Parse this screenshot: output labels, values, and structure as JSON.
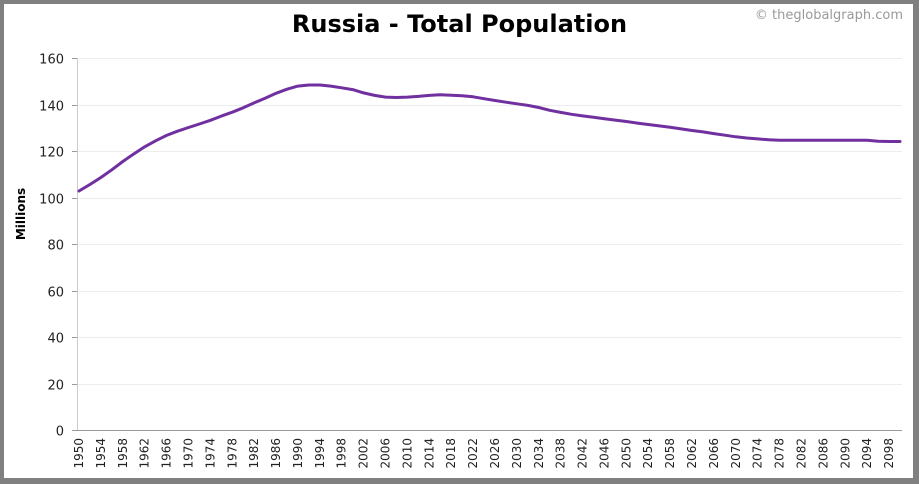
{
  "header": {
    "title": "Russia - Total Population",
    "credit": "© theglobalgraph.com"
  },
  "colors": {
    "line": "#7030a0",
    "grid": "#ececec",
    "axis": "#9a9a9a",
    "border": "#808080"
  },
  "chart_data": {
    "type": "line",
    "title": "Russia - Total Population",
    "xlabel": "",
    "ylabel": "Millions",
    "ylim": [
      0,
      160
    ],
    "xlim": [
      1950,
      2100
    ],
    "grid": true,
    "legend": "none",
    "y_ticks": [
      0,
      20,
      40,
      60,
      80,
      100,
      120,
      140,
      160
    ],
    "x_ticks": [
      1950,
      1954,
      1958,
      1962,
      1966,
      1970,
      1974,
      1978,
      1982,
      1986,
      1990,
      1994,
      1998,
      2002,
      2006,
      2010,
      2014,
      2018,
      2022,
      2026,
      2030,
      2034,
      2038,
      2042,
      2046,
      2050,
      2054,
      2058,
      2062,
      2066,
      2070,
      2074,
      2078,
      2082,
      2086,
      2090,
      2094,
      2098
    ],
    "series": [
      {
        "name": "Total Population",
        "x": [
          1950,
          1952,
          1954,
          1956,
          1958,
          1960,
          1962,
          1964,
          1966,
          1968,
          1970,
          1972,
          1974,
          1976,
          1978,
          1980,
          1982,
          1984,
          1986,
          1988,
          1990,
          1992,
          1994,
          1996,
          1998,
          2000,
          2002,
          2004,
          2006,
          2008,
          2010,
          2012,
          2014,
          2016,
          2018,
          2020,
          2022,
          2024,
          2026,
          2028,
          2030,
          2032,
          2034,
          2036,
          2038,
          2040,
          2042,
          2044,
          2046,
          2048,
          2050,
          2052,
          2054,
          2056,
          2058,
          2060,
          2062,
          2064,
          2066,
          2068,
          2070,
          2072,
          2074,
          2076,
          2078,
          2080,
          2082,
          2084,
          2086,
          2088,
          2090,
          2092,
          2094,
          2096,
          2098,
          2100
        ],
        "values": [
          102.8,
          105.6,
          108.6,
          111.9,
          115.5,
          118.7,
          121.8,
          124.4,
          126.7,
          128.5,
          130.1,
          131.6,
          133.2,
          135.0,
          136.7,
          138.6,
          140.7,
          142.7,
          144.8,
          146.6,
          147.9,
          148.4,
          148.4,
          147.9,
          147.2,
          146.4,
          145.0,
          143.9,
          143.2,
          143.0,
          143.2,
          143.5,
          143.9,
          144.2,
          144.0,
          143.8,
          143.3,
          142.5,
          141.7,
          141.0,
          140.3,
          139.6,
          138.7,
          137.5,
          136.6,
          135.8,
          135.1,
          134.5,
          133.9,
          133.3,
          132.7,
          132.0,
          131.4,
          130.8,
          130.2,
          129.5,
          128.8,
          128.2,
          127.5,
          126.8,
          126.1,
          125.6,
          125.2,
          124.8,
          124.6,
          124.6,
          124.6,
          124.6,
          124.6,
          124.6,
          124.6,
          124.6,
          124.6,
          124.2,
          124.1,
          124.1
        ]
      }
    ]
  }
}
